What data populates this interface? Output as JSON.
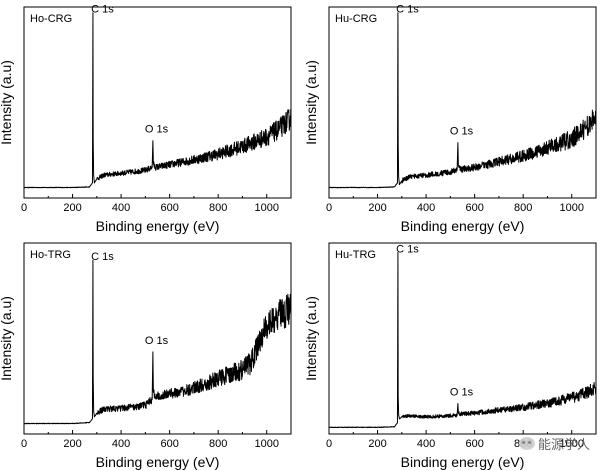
{
  "figure": {
    "watermark": "能源学人"
  },
  "chart_data": [
    {
      "type": "line",
      "title": "",
      "panel_label": "Ho-CRG",
      "xlabel": "Binding energy (eV)",
      "ylabel": "Intensity (a.u)",
      "xlim": [
        0,
        1100
      ],
      "ylim": [
        0,
        100
      ],
      "xticks": [
        0,
        200,
        400,
        600,
        800,
        1000
      ],
      "x": [
        0,
        100,
        200,
        270,
        282,
        284,
        285,
        287,
        290,
        300,
        330,
        400,
        500,
        528,
        531,
        533,
        540,
        600,
        700,
        800,
        900,
        1000,
        1050,
        1100
      ],
      "y": [
        5.5,
        5.5,
        5.5,
        5.8,
        8.0,
        97.0,
        30.0,
        12.0,
        8.0,
        10.0,
        12.0,
        13.0,
        14.5,
        16.0,
        30.0,
        18.0,
        16.0,
        17.5,
        20.0,
        23.0,
        27.0,
        32.0,
        36.0,
        42.0
      ],
      "noise_from": 300,
      "noise_amp": [
        1.2,
        6.0
      ],
      "annotations": [
        {
          "label": "C 1s",
          "x": 285,
          "y": 97
        },
        {
          "label": "O 1s",
          "x": 531,
          "y": 30
        }
      ]
    },
    {
      "type": "line",
      "title": "",
      "panel_label": "Hu-CRG",
      "xlabel": "Binding energy (eV)",
      "ylabel": "Intensity (a.u)",
      "xlim": [
        0,
        1100
      ],
      "ylim": [
        0,
        100
      ],
      "xticks": [
        0,
        200,
        400,
        600,
        800,
        1000
      ],
      "x": [
        0,
        100,
        200,
        270,
        282,
        284,
        285,
        287,
        290,
        300,
        330,
        400,
        500,
        528,
        531,
        533,
        540,
        600,
        700,
        800,
        900,
        1000,
        1050,
        1100
      ],
      "y": [
        5.5,
        5.5,
        5.5,
        5.8,
        8.0,
        97.0,
        28.0,
        11.0,
        7.0,
        9.0,
        11.0,
        12.0,
        13.5,
        15.0,
        29.0,
        17.0,
        15.0,
        16.0,
        19.0,
        22.0,
        26.0,
        31.0,
        36.0,
        42.0
      ],
      "noise_from": 300,
      "noise_amp": [
        1.2,
        6.0
      ],
      "annotations": [
        {
          "label": "C 1s",
          "x": 285,
          "y": 97
        },
        {
          "label": "O 1s",
          "x": 531,
          "y": 29
        }
      ]
    },
    {
      "type": "line",
      "title": "",
      "panel_label": "Ho-TRG",
      "xlabel": "Binding energy (eV)",
      "ylabel": "Intensity (a.u)",
      "xlim": [
        0,
        1100
      ],
      "ylim": [
        0,
        100
      ],
      "xticks": [
        0,
        200,
        400,
        600,
        800,
        1000
      ],
      "x": [
        0,
        100,
        200,
        270,
        282,
        284,
        285,
        287,
        290,
        300,
        330,
        400,
        500,
        528,
        531,
        533,
        540,
        600,
        700,
        800,
        900,
        940,
        960,
        1000,
        1050,
        1100
      ],
      "y": [
        5.5,
        5.5,
        5.5,
        6.0,
        8.0,
        91.0,
        30.0,
        12.0,
        9.0,
        11.0,
        13.0,
        13.5,
        15.0,
        18.0,
        43.0,
        22.0,
        20.0,
        21.0,
        24.0,
        29.0,
        34.0,
        38.0,
        45.0,
        57.0,
        62.0,
        66.0
      ],
      "noise_from": 300,
      "noise_amp": [
        1.5,
        9.0
      ],
      "annotations": [
        {
          "label": "C 1s",
          "x": 285,
          "y": 91
        },
        {
          "label": "O 1s",
          "x": 531,
          "y": 43
        }
      ]
    },
    {
      "type": "line",
      "title": "",
      "panel_label": "Hu-TRG",
      "xlabel": "Binding energy (eV)",
      "ylabel": "Intensity (a.u)",
      "xlim": [
        0,
        1100
      ],
      "ylim": [
        0,
        100
      ],
      "xticks": [
        0,
        200,
        400,
        600,
        800,
        1000
      ],
      "x": [
        0,
        100,
        200,
        270,
        282,
        284,
        285,
        287,
        290,
        300,
        330,
        400,
        500,
        528,
        531,
        533,
        540,
        600,
        700,
        800,
        900,
        1000,
        1050,
        1100
      ],
      "y": [
        3.5,
        3.5,
        3.5,
        3.8,
        6.0,
        95.0,
        20.0,
        10.0,
        8.0,
        9.0,
        9.5,
        9.0,
        9.5,
        10.0,
        16.0,
        11.0,
        10.5,
        11.0,
        12.5,
        14.0,
        16.0,
        19.0,
        21.0,
        24.0
      ],
      "noise_from": 300,
      "noise_amp": [
        0.8,
        3.5
      ],
      "annotations": [
        {
          "label": "C 1s",
          "x": 285,
          "y": 95
        },
        {
          "label": "O 1s",
          "x": 531,
          "y": 16
        }
      ]
    }
  ]
}
